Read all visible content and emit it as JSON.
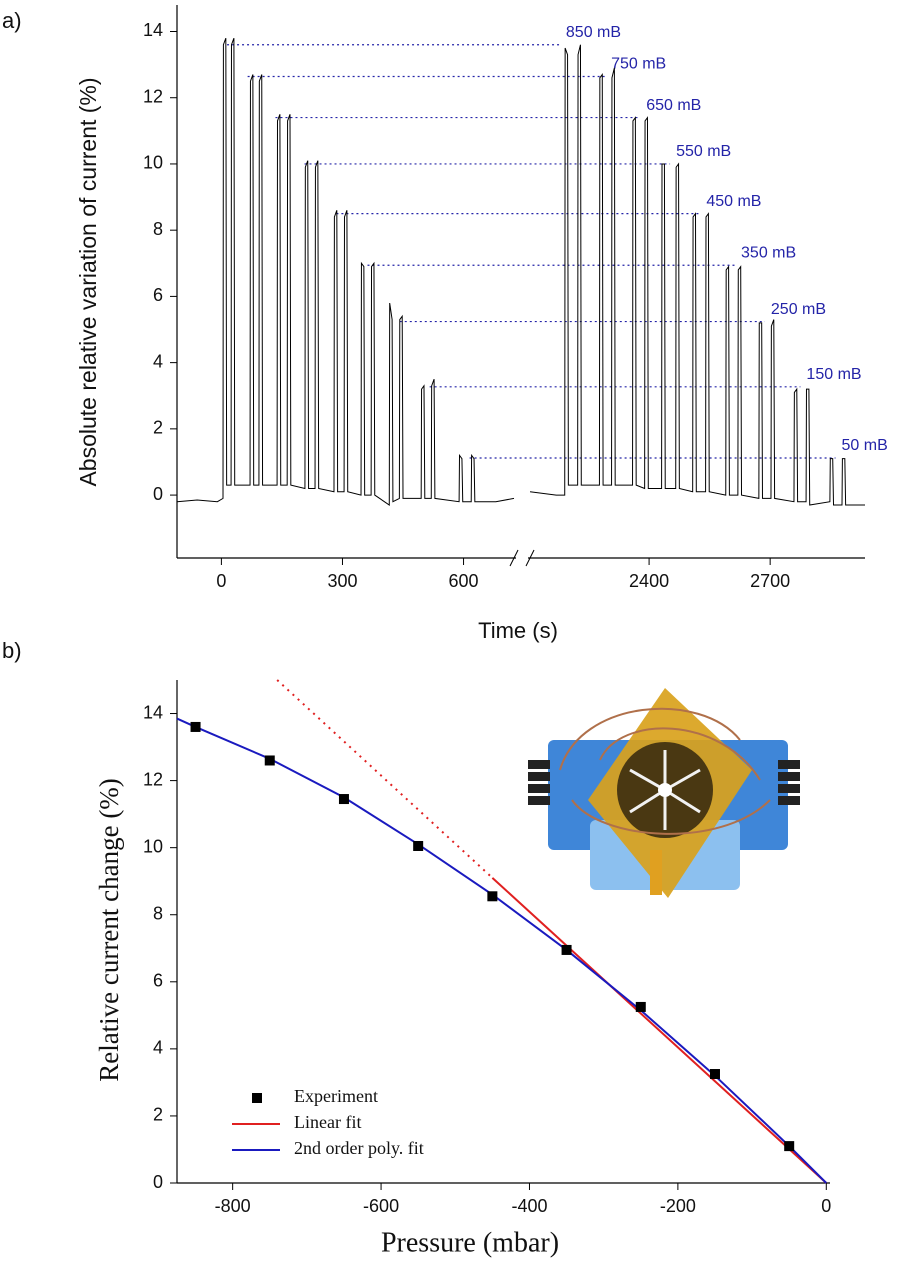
{
  "chart_data": [
    {
      "type": "line",
      "panel_label": "a)",
      "ylabel": "Absolute relative variation of current (%)",
      "xlabel": "Time (s)",
      "color": "#000000",
      "annotation_color": "#2424a8",
      "xlim": [
        -110,
        2935
      ],
      "x_break": [
        730,
        2100
      ],
      "xticks": [
        0,
        300,
        600,
        2400,
        2700
      ],
      "ylim": [
        -1.9,
        14.8
      ],
      "yticks": [
        0,
        2,
        4,
        6,
        8,
        10,
        12,
        14
      ],
      "x": [
        -110,
        -60,
        -10,
        4,
        5,
        11,
        13,
        24,
        25,
        31,
        33,
        71,
        72,
        78,
        80,
        93,
        94,
        100,
        102,
        138,
        139,
        145,
        147,
        163,
        164,
        170,
        172,
        207,
        208,
        214,
        216,
        232,
        233,
        239,
        241,
        279,
        280,
        286,
        288,
        304,
        305,
        311,
        313,
        346,
        347,
        353,
        355,
        371,
        372,
        378,
        380,
        416,
        417,
        423,
        425,
        441,
        442,
        448,
        450,
        495,
        496,
        502,
        504,
        520,
        521,
        527,
        529,
        589,
        590,
        596,
        598,
        619,
        620,
        626,
        628,
        680,
        725,
        1400,
        2105,
        2170,
        2191,
        2192,
        2198,
        2200,
        2223,
        2224,
        2230,
        2232,
        2277,
        2278,
        2284,
        2286,
        2307,
        2308,
        2314,
        2316,
        2359,
        2360,
        2366,
        2368,
        2389,
        2390,
        2396,
        2398,
        2431,
        2432,
        2438,
        2440,
        2466,
        2467,
        2473,
        2475,
        2508,
        2509,
        2515,
        2517,
        2540,
        2541,
        2547,
        2549,
        2590,
        2591,
        2597,
        2599,
        2620,
        2621,
        2627,
        2629,
        2672,
        2673,
        2679,
        2681,
        2702,
        2703,
        2709,
        2711,
        2759,
        2760,
        2766,
        2768,
        2789,
        2790,
        2796,
        2798,
        2848,
        2849,
        2855,
        2857,
        2878,
        2879,
        2885,
        2887,
        2935
      ],
      "values": [
        -0.2,
        -0.15,
        -0.2,
        -0.1,
        13.6,
        13.8,
        0.3,
        0.3,
        13.6,
        13.8,
        0.3,
        0.3,
        12.5,
        12.7,
        0.3,
        0.3,
        12.5,
        12.7,
        0.3,
        0.3,
        11.3,
        11.5,
        0.3,
        0.3,
        11.3,
        11.5,
        0.3,
        0.2,
        9.9,
        10.1,
        0.2,
        0.2,
        9.9,
        10.1,
        0.2,
        0.1,
        8.4,
        8.6,
        0.1,
        0.1,
        8.4,
        8.6,
        0.1,
        0,
        7.0,
        6.9,
        0,
        0,
        6.9,
        7.0,
        0,
        -0.3,
        5.8,
        5.3,
        -0.2,
        -0.1,
        5.3,
        5.4,
        -0.1,
        -0.1,
        3.2,
        3.3,
        -0.1,
        -0.1,
        3.3,
        3.5,
        -0.1,
        -0.2,
        1.2,
        1.1,
        -0.2,
        -0.2,
        1.2,
        1.1,
        -0.2,
        -0.2,
        -0.1,
        null,
        0.1,
        0,
        0,
        13.5,
        13.3,
        0.3,
        0.3,
        13.3,
        13.6,
        0.3,
        0.3,
        12.6,
        12.7,
        0.3,
        0.3,
        12.6,
        12.9,
        0.3,
        0.3,
        11.3,
        11.4,
        0.3,
        0.2,
        11.3,
        11.4,
        0.2,
        0.2,
        10.0,
        10.0,
        0.2,
        0.2,
        9.9,
        10.0,
        0.2,
        0.1,
        8.4,
        8.5,
        0.1,
        0.1,
        8.4,
        8.5,
        0.1,
        0,
        6.8,
        6.9,
        0,
        0,
        6.8,
        6.9,
        0,
        -0.1,
        5.2,
        5.2,
        -0.1,
        -0.1,
        5.1,
        5.3,
        -0.1,
        -0.2,
        3.1,
        3.2,
        -0.2,
        -0.2,
        3.2,
        3.2,
        -0.3,
        -0.2,
        1.1,
        1.1,
        -0.3,
        -0.3,
        1.1,
        1.1,
        -0.3,
        -0.3
      ],
      "annotations": [
        {
          "text": "850 mB",
          "value": 13.6,
          "x_start": 14,
          "x_end": 2179
        },
        {
          "text": "750 mB",
          "value": 12.64,
          "x_start": 65,
          "x_end": 2291
        },
        {
          "text": "650 mB",
          "value": 11.4,
          "x_start": 134,
          "x_end": 2378
        },
        {
          "text": "550 mB",
          "value": 10.0,
          "x_start": 206,
          "x_end": 2452
        },
        {
          "text": "450 mB",
          "value": 8.5,
          "x_start": 285,
          "x_end": 2527
        },
        {
          "text": "350 mB",
          "value": 6.94,
          "x_start": 362,
          "x_end": 2613
        },
        {
          "text": "250 mB",
          "value": 5.24,
          "x_start": 442,
          "x_end": 2687
        },
        {
          "text": "150 mB",
          "value": 3.27,
          "x_start": 516,
          "x_end": 2775
        },
        {
          "text": "50 mB",
          "value": 1.12,
          "x_start": 615,
          "x_end": 2862
        }
      ]
    },
    {
      "type": "scatter",
      "panel_label": "b)",
      "ylabel": "Relative current change (%)",
      "xlabel": "Pressure (mbar)",
      "xlim": [
        -875,
        5
      ],
      "xticks": [
        -800,
        -600,
        -400,
        -200,
        0
      ],
      "ylim": [
        0,
        15
      ],
      "yticks": [
        0,
        2,
        4,
        6,
        8,
        10,
        12,
        14
      ],
      "legend": "lower left",
      "series": [
        {
          "name": "Experiment",
          "mode": "markers",
          "color": "#000000",
          "x": [
            -850,
            -750,
            -650,
            -550,
            -450,
            -350,
            -250,
            -150,
            -50
          ],
          "values": [
            13.6,
            12.6,
            11.45,
            10.05,
            8.55,
            6.95,
            5.25,
            3.25,
            1.1
          ]
        },
        {
          "name": "Linear fit",
          "mode": "line",
          "color": "#e02020",
          "segment_styles": [
            "dotted",
            "solid"
          ],
          "x": [
            -740,
            -450,
            0
          ],
          "values": [
            15.0,
            9.1,
            0
          ]
        },
        {
          "name": "2nd order poly. fit",
          "mode": "line",
          "color": "#1a1abf",
          "x": [
            -875,
            -850,
            -750,
            -650,
            -550,
            -450,
            -350,
            -250,
            -150,
            -50,
            0
          ],
          "values": [
            13.85,
            13.6,
            12.65,
            11.5,
            10.1,
            8.6,
            6.95,
            5.15,
            3.2,
            1.1,
            0
          ]
        }
      ]
    }
  ]
}
